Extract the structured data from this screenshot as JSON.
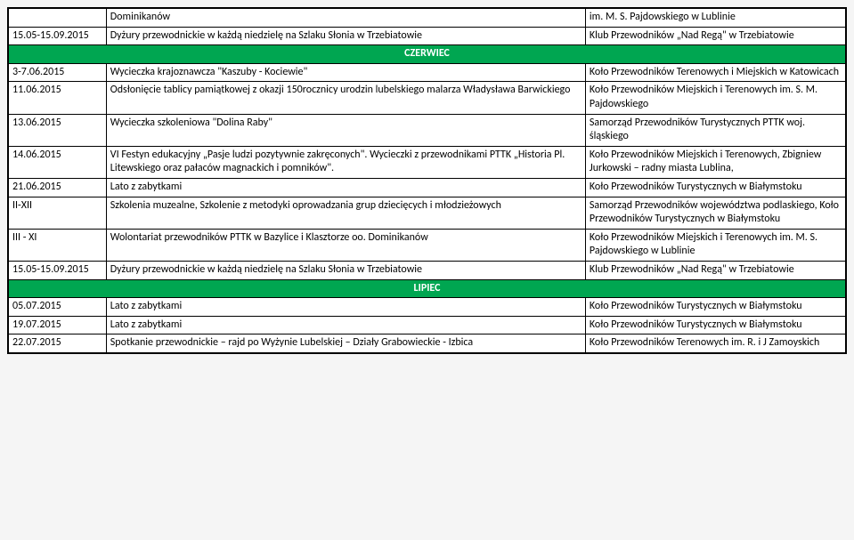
{
  "colors": {
    "section_bg": "#00a651",
    "section_fg": "#ffffff",
    "border": "#000000",
    "bg": "#ffffff"
  },
  "rows": [
    {
      "type": "row",
      "date": "",
      "desc": "Dominikanów",
      "org": "im. M. S. Pajdowskiego w Lublinie"
    },
    {
      "type": "row",
      "date": "15.05-15.09.2015",
      "desc": "Dyżury przewodnickie w każdą niedzielę na Szlaku Słonia w Trzebiatowie",
      "org": "Klub Przewodników „Nad Regą\" w Trzebiatowie"
    },
    {
      "type": "section",
      "label": "CZERWIEC"
    },
    {
      "type": "row",
      "date": "3-7.06.2015",
      "desc": "Wycieczka krajoznawcza \"Kaszuby - Kociewie\"",
      "org": "Koło Przewodników Terenowych i Miejskich w  Katowicach"
    },
    {
      "type": "row",
      "date": "11.06.2015",
      "desc": "Odsłonięcie tablicy pamiątkowej z okazji 150rocznicy urodzin lubelskiego malarza Władysława Barwickiego",
      "org": "Koło Przewodników Miejskich i Terenowych im. S. M. Pajdowskiego"
    },
    {
      "type": "row",
      "date": "13.06.2015",
      "desc": "Wycieczka szkoleniowa \"Dolina Raby\"",
      "org": "Samorząd Przewodników Turystycznych PTTK woj. śląskiego"
    },
    {
      "type": "row",
      "date": "14.06.2015",
      "desc": "VI Festyn edukacyjny „Pasje ludzi pozytywnie zakręconych\". Wycieczki z przewodnikami PTTK „Historia Pl. Litewskiego oraz pałaców magnackich i pomników\".",
      "org": "Koło Przewodników Miejskich i Terenowych, Zbigniew Jurkowski – radny miasta Lublina,"
    },
    {
      "type": "row",
      "date": "21.06.2015",
      "desc": "Lato z zabytkami",
      "org": "Koło Przewodników Turystycznych w Białymstoku"
    },
    {
      "type": "row",
      "date": "II-XII",
      "desc": "Szkolenia muzealne, Szkolenie z metodyki oprowadzania grup dziecięcych i młodzieżowych",
      "org": "Samorząd Przewodników województwa podlaskiego, Koło Przewodników Turystycznych w Białymstoku"
    },
    {
      "type": "row",
      "date": "III - XI",
      "desc": "Wolontariat przewodników PTTK w Bazylice i Klasztorze oo. Dominikanów",
      "org": "Koło Przewodników Miejskich i Terenowych im. M. S. Pajdowskiego w Lublinie"
    },
    {
      "type": "row",
      "date": "15.05-15.09.2015",
      "desc": "Dyżury przewodnickie w każdą niedzielę na Szlaku Słonia w Trzebiatowie",
      "org": "Klub Przewodników „Nad Regą\" w Trzebiatowie"
    },
    {
      "type": "section",
      "label": "LIPIEC"
    },
    {
      "type": "row",
      "date": "05.07.2015",
      "desc": "Lato z zabytkami",
      "org": "Koło Przewodników Turystycznych w Białymstoku"
    },
    {
      "type": "row",
      "date": "19.07.2015",
      "desc": "Lato z zabytkami",
      "org": "Koło Przewodników Turystycznych w Białymstoku"
    },
    {
      "type": "row",
      "date": "22.07.2015",
      "desc": "Spotkanie przewodnickie – rajd po Wyżynie Lubelskiej – Działy Grabowieckie - Izbica",
      "org": "Koło Przewodników Terenowych im. R. i J Zamoyskich"
    }
  ]
}
